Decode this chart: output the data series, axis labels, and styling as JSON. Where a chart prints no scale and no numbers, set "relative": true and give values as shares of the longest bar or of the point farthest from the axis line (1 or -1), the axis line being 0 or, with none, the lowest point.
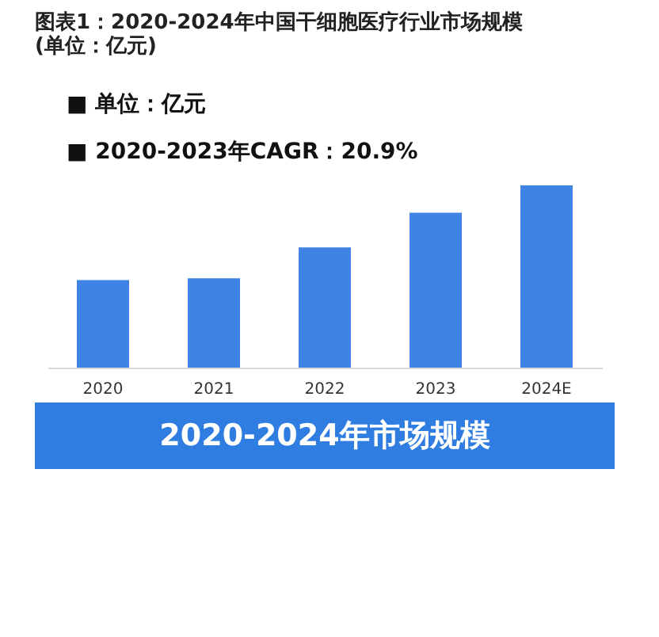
{
  "chart_data": {
    "type": "bar",
    "title": "图表1：2020-2024年中国干细胞医疗行业市场规模(单位：亿元)",
    "xlabel": "2020-2024年市场规模",
    "annotations": [
      "■  单位：亿元",
      "■  2020-2023年CAGR：20.9%"
    ],
    "categories": [
      "2020",
      "2021",
      "2022",
      "2023",
      "2024E"
    ],
    "values": [
      0.48,
      0.49,
      0.66,
      0.85,
      1
    ],
    "color": "#3f84e5",
    "relative": true
  }
}
